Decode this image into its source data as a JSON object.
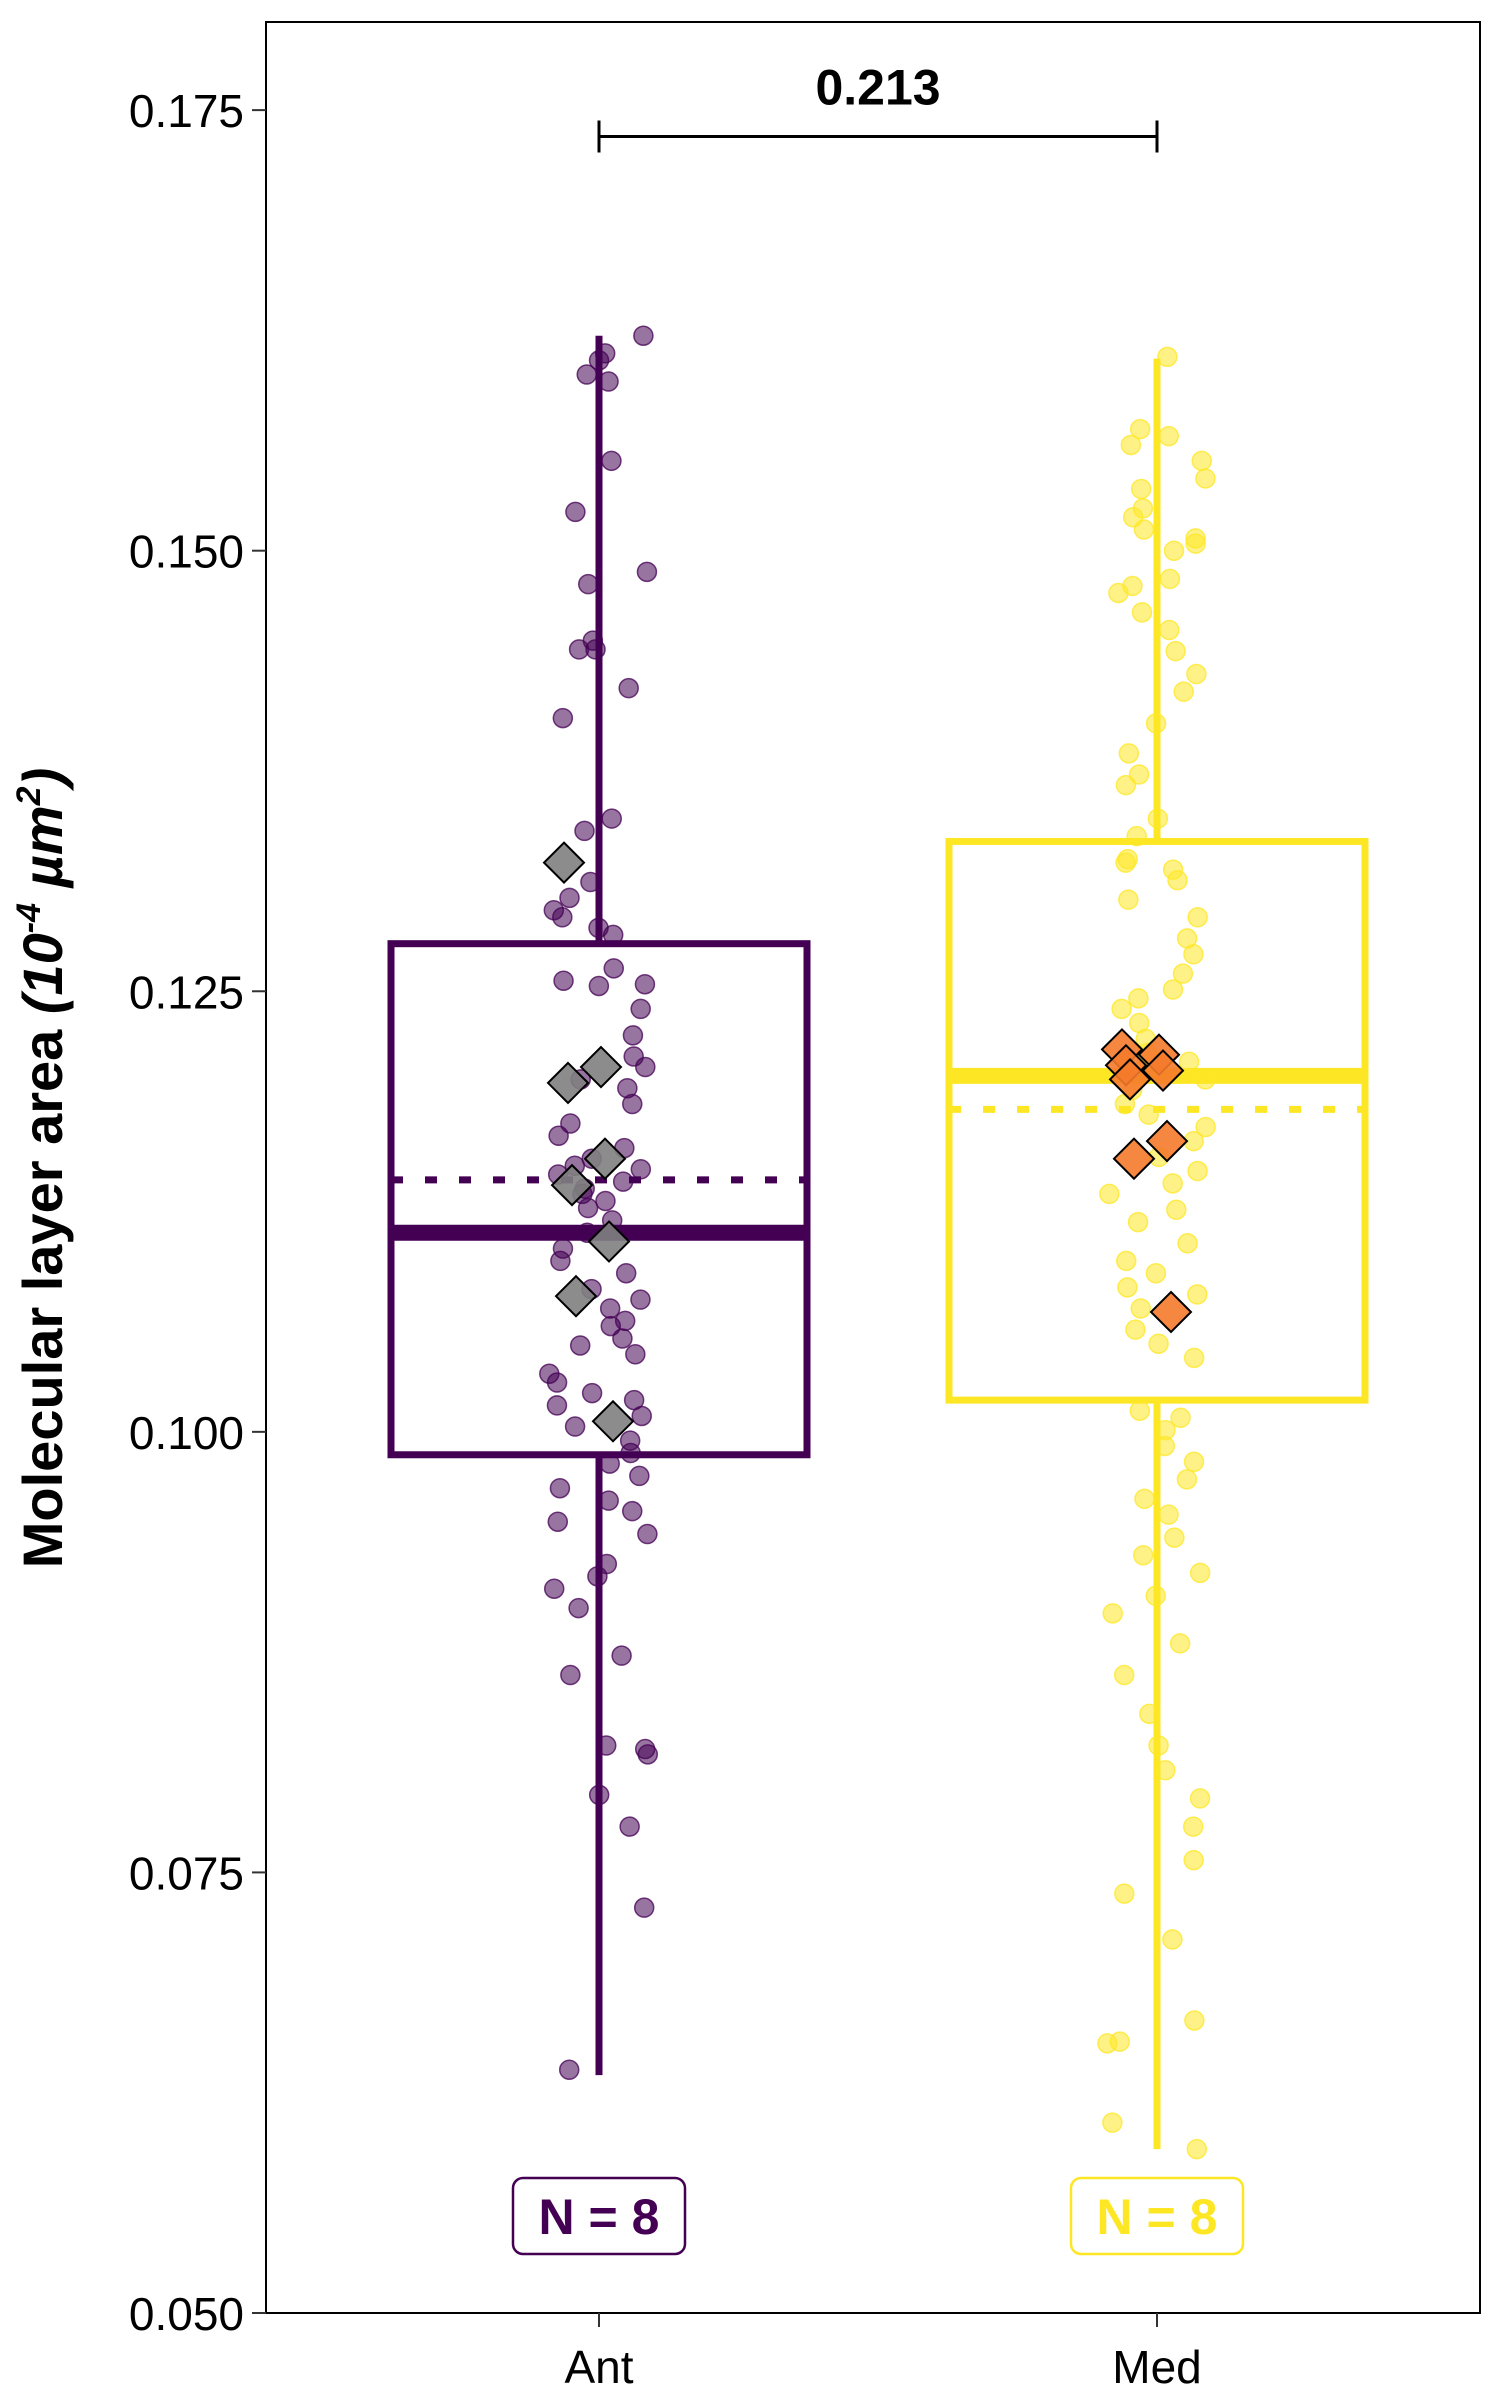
{
  "chart_data": {
    "type": "box",
    "ylabel_main": "Molecular layer area ",
    "ylabel_unit_base": "(10",
    "ylabel_unit_exp1": "-4",
    "ylabel_unit_mid": " µm",
    "ylabel_unit_exp2": "2",
    "ylabel_unit_close": ")",
    "ylim": [
      0.05,
      0.18
    ],
    "yticks": [
      "0.050",
      "0.075",
      "0.100",
      "0.125",
      "0.150",
      "0.175"
    ],
    "categories": [
      "Ant",
      "Med"
    ],
    "significance": {
      "label": "0.213",
      "y": 0.1735
    },
    "groups": [
      {
        "name": "Ant",
        "color": "#440154",
        "diamond_color": "#808080",
        "n_label": "N = 8",
        "whisker_low": 0.0635,
        "q1": 0.0987,
        "median": 0.1113,
        "mean": 0.1143,
        "q3": 0.1277,
        "whisker_high": 0.1622,
        "points": [
          0.1622,
          0.1608,
          0.1612,
          0.16,
          0.1596,
          0.1551,
          0.1522,
          0.1488,
          0.1481,
          0.1449,
          0.1444,
          0.1444,
          0.1422,
          0.1405,
          0.1341,
          0.1348,
          0.1312,
          0.1303,
          0.1296,
          0.1292,
          0.1286,
          0.1282,
          0.1263,
          0.1256,
          0.1254,
          0.1253,
          0.124,
          0.1225,
          0.1213,
          0.1207,
          0.12,
          0.1195,
          0.1186,
          0.1175,
          0.1168,
          0.1161,
          0.1155,
          0.1151,
          0.1149,
          0.1146,
          0.1142,
          0.1138,
          0.1135,
          0.1131,
          0.1127,
          0.112,
          0.1113,
          0.1104,
          0.1097,
          0.109,
          0.1081,
          0.1075,
          0.107,
          0.1063,
          0.106,
          0.1053,
          0.1049,
          0.1044,
          0.1033,
          0.1028,
          0.1022,
          0.1018,
          0.1015,
          0.1009,
          0.1003,
          0.0995,
          0.0988,
          0.0982,
          0.0975,
          0.0968,
          0.0961,
          0.0955,
          0.0949,
          0.0942,
          0.0925,
          0.0918,
          0.0911,
          0.09,
          0.0873,
          0.0862,
          0.0822,
          0.082,
          0.0817,
          0.0794,
          0.0776,
          0.073,
          0.0638
        ],
        "replicates": [
          0.1323,
          0.1207,
          0.1198,
          0.1155,
          0.114,
          0.1108,
          0.1077,
          0.1006
        ]
      },
      {
        "name": "Med",
        "color": "#FDE725",
        "diamond_color": "#F57A2B",
        "n_label": "N = 8",
        "whisker_low": 0.0593,
        "q1": 0.1018,
        "median": 0.1202,
        "mean": 0.1183,
        "q3": 0.1335,
        "whisker_high": 0.1609,
        "points": [
          0.161,
          0.1569,
          0.1565,
          0.156,
          0.1551,
          0.1541,
          0.1535,
          0.1524,
          0.1519,
          0.1512,
          0.1507,
          0.1504,
          0.15,
          0.1484,
          0.148,
          0.1476,
          0.1465,
          0.1455,
          0.1443,
          0.143,
          0.142,
          0.1402,
          0.1385,
          0.1373,
          0.1367,
          0.1348,
          0.1338,
          0.1325,
          0.1323,
          0.1319,
          0.1313,
          0.1302,
          0.1292,
          0.128,
          0.1271,
          0.126,
          0.1251,
          0.1246,
          0.124,
          0.1232,
          0.1223,
          0.1215,
          0.121,
          0.1206,
          0.12,
          0.1194,
          0.1186,
          0.118,
          0.1173,
          0.1165,
          0.1156,
          0.1148,
          0.1141,
          0.1135,
          0.1126,
          0.1119,
          0.1107,
          0.1097,
          0.109,
          0.1082,
          0.1078,
          0.107,
          0.1058,
          0.105,
          0.1042,
          0.1012,
          0.1008,
          0.1001,
          0.0992,
          0.0983,
          0.0973,
          0.0962,
          0.0953,
          0.094,
          0.093,
          0.092,
          0.0907,
          0.0897,
          0.088,
          0.0862,
          0.084,
          0.0822,
          0.0808,
          0.0792,
          0.0776,
          0.0757,
          0.0738,
          0.0712,
          0.0666,
          0.0654,
          0.0653,
          0.0608,
          0.0593
        ],
        "replicates": [
          0.1217,
          0.1214,
          0.1208,
          0.1205,
          0.12,
          0.1165,
          0.1155,
          0.1068
        ]
      }
    ]
  }
}
